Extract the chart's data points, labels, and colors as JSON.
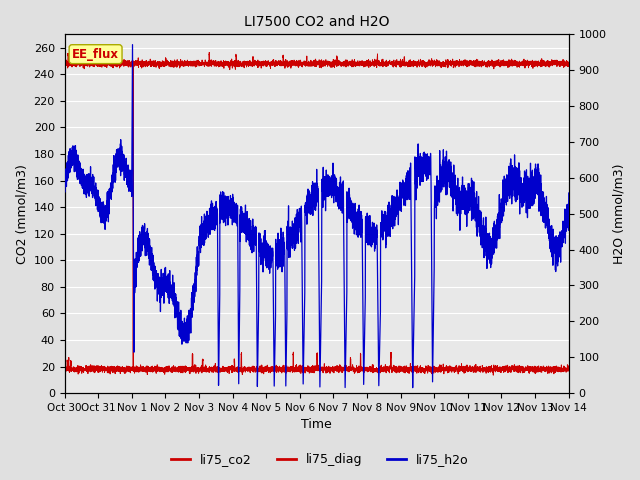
{
  "title": "LI7500 CO2 and H2O",
  "xlabel": "Time",
  "ylabel_left": "CO2 (mmol/m3)",
  "ylabel_right": "H2O (mmol/m3)",
  "ylim_left": [
    0,
    270
  ],
  "ylim_right": [
    0,
    1000
  ],
  "yticks_left": [
    0,
    20,
    40,
    60,
    80,
    100,
    120,
    140,
    160,
    180,
    200,
    220,
    240,
    260
  ],
  "yticks_right": [
    0,
    100,
    200,
    300,
    400,
    500,
    600,
    700,
    800,
    900,
    1000
  ],
  "background_color": "#e0e0e0",
  "plot_bg_color": "#e8e8e8",
  "grid_color": "#ffffff",
  "co2_color": "#cc0000",
  "diag_color": "#cc0000",
  "h2o_color": "#0000cc",
  "ee_flux_box_color": "#ffff99",
  "ee_flux_text_color": "#cc0000",
  "legend_entries": [
    "li75_co2",
    "li75_diag",
    "li75_h2o"
  ],
  "legend_colors": [
    "#cc0000",
    "#cc0000",
    "#0000cc"
  ],
  "xtick_labels": [
    "Oct 30",
    "Oct 31",
    "Nov 1",
    "Nov 2",
    "Nov 3",
    "Nov 4",
    "Nov 5",
    "Nov 6",
    "Nov 7",
    "Nov 8",
    "Nov 9",
    "Nov 10",
    "Nov 11",
    "Nov 12",
    "Nov 13",
    "Nov 14"
  ],
  "xtick_positions": [
    0,
    1,
    2,
    3,
    4,
    5,
    6,
    7,
    8,
    9,
    10,
    11,
    12,
    13,
    14,
    15
  ]
}
